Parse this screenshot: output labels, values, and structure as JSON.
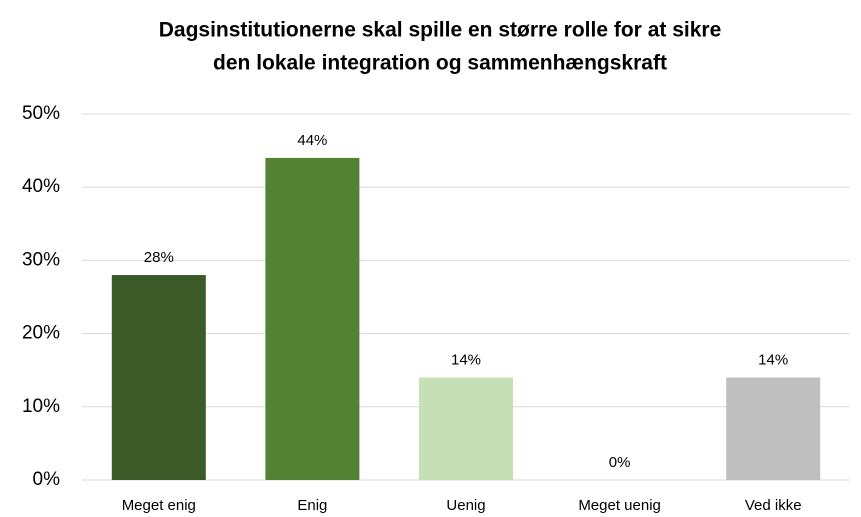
{
  "chart_data": {
    "type": "bar",
    "title": [
      "Dagsinstitutionerne skal spille en større rolle for at  sikre",
      "den lokale integration og sammenhængskraft"
    ],
    "categories": [
      "Meget enig",
      "Enig",
      "Uenig",
      "Meget uenig",
      "Ved ikke"
    ],
    "values": [
      28,
      44,
      14,
      0,
      14
    ],
    "value_labels": [
      "28%",
      "44%",
      "14%",
      "0%",
      "14%"
    ],
    "colors": [
      "#3a5a27",
      "#548235",
      "#c5e0b4",
      "#a9d18e",
      "#bfbfbf"
    ],
    "ylim": [
      0,
      50
    ],
    "yticks": [
      {
        "value": 0,
        "label": "0%"
      },
      {
        "value": 10,
        "label": "10%"
      },
      {
        "value": 20,
        "label": "20%"
      },
      {
        "value": 30,
        "label": "30%"
      },
      {
        "value": 40,
        "label": "40%"
      },
      {
        "value": 50,
        "label": "50%"
      }
    ],
    "grid": true
  }
}
